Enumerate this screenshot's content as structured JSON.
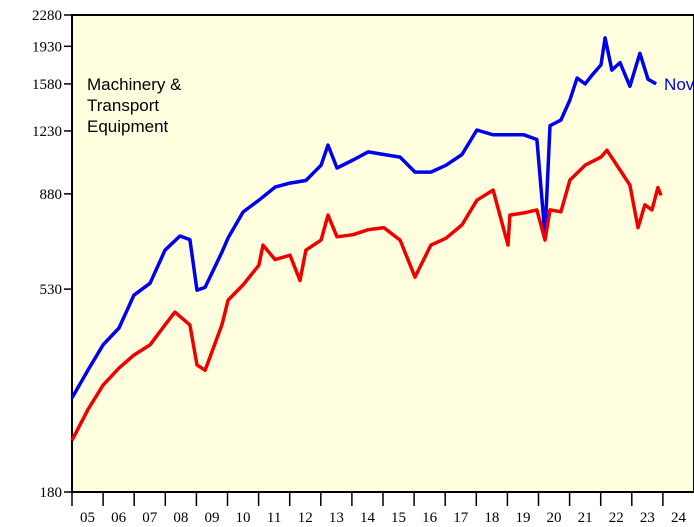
{
  "chart_data": {
    "type": "line",
    "annotations": [
      "Machinery &",
      "Transport",
      "Equipment"
    ],
    "end_label": "Nov",
    "log_scale": true,
    "ylim": [
      180,
      2280
    ],
    "yticks": [
      180,
      530,
      880,
      1230,
      1580,
      1930,
      2280
    ],
    "xlim": [
      2005,
      2025
    ],
    "xticks": [
      {
        "value": 2005,
        "label": "05"
      },
      {
        "value": 2006,
        "label": "06"
      },
      {
        "value": 2007,
        "label": "07"
      },
      {
        "value": 2008,
        "label": "08"
      },
      {
        "value": 2009,
        "label": "09"
      },
      {
        "value": 2010,
        "label": "10"
      },
      {
        "value": 2011,
        "label": "11"
      },
      {
        "value": 2012,
        "label": "12"
      },
      {
        "value": 2013,
        "label": "13"
      },
      {
        "value": 2014,
        "label": "14"
      },
      {
        "value": 2015,
        "label": "15"
      },
      {
        "value": 2016,
        "label": "16"
      },
      {
        "value": 2017,
        "label": "17"
      },
      {
        "value": 2018,
        "label": "18"
      },
      {
        "value": 2019,
        "label": "19"
      },
      {
        "value": 2020,
        "label": "20"
      },
      {
        "value": 2021,
        "label": "21"
      },
      {
        "value": 2022,
        "label": "22"
      },
      {
        "value": 2023,
        "label": "23"
      },
      {
        "value": 2024,
        "label": "24"
      }
    ],
    "series": [
      {
        "color": "#0000ee",
        "x": [
          2005.0,
          2005.51,
          2006.0,
          2006.51,
          2006.99,
          2007.51,
          2007.99,
          2008.47,
          2008.79,
          2009.02,
          2009.28,
          2009.82,
          2010.02,
          2010.5,
          2011.01,
          2011.53,
          2012.01,
          2012.52,
          2013.01,
          2013.23,
          2013.52,
          2014.04,
          2014.52,
          2015.03,
          2015.55,
          2016.03,
          2016.54,
          2017.03,
          2017.54,
          2018.02,
          2018.54,
          2019.02,
          2019.53,
          2019.95,
          2020.21,
          2020.37,
          2020.72,
          2021.01,
          2021.24,
          2021.5,
          2021.72,
          2022.01,
          2022.14,
          2022.36,
          2022.62,
          2022.94,
          2023.26,
          2023.52,
          2023.78
        ],
        "values": [
          297,
          344,
          394,
          431,
          513,
          547,
          652,
          703,
          690,
          527,
          535,
          645,
          696,
          799,
          851,
          912,
          932,
          945,
          1025,
          1141,
          1010,
          1054,
          1100,
          1085,
          1070,
          988,
          988,
          1025,
          1085,
          1236,
          1205,
          1205,
          1205,
          1175,
          706,
          1265,
          1303,
          1450,
          1630,
          1580,
          1655,
          1748,
          2018,
          1700,
          1770,
          1560,
          1860,
          1620,
          1580
        ]
      },
      {
        "color": "#ee0000",
        "x": [
          2005.0,
          2005.51,
          2006.0,
          2006.51,
          2006.99,
          2007.51,
          2007.99,
          2008.31,
          2008.79,
          2009.02,
          2009.28,
          2009.82,
          2010.02,
          2010.5,
          2011.01,
          2011.14,
          2011.53,
          2012.01,
          2012.33,
          2012.52,
          2013.01,
          2013.23,
          2013.52,
          2014.04,
          2014.52,
          2015.03,
          2015.55,
          2016.03,
          2016.54,
          2017.03,
          2017.54,
          2018.02,
          2018.54,
          2019.02,
          2019.08,
          2019.53,
          2019.95,
          2020.21,
          2020.37,
          2020.72,
          2021.01,
          2021.5,
          2022.01,
          2022.2,
          2022.62,
          2022.94,
          2023.2,
          2023.42,
          2023.65,
          2023.84,
          2023.94
        ],
        "values": [
          237,
          279,
          318,
          348,
          373,
          394,
          438,
          469,
          438,
          354,
          344,
          438,
          500,
          542,
          602,
          670,
          620,
          635,
          555,
          652,
          688,
          786,
          700,
          708,
          727,
          735,
          688,
          565,
          670,
          695,
          746,
          851,
          898,
          670,
          786,
          795,
          808,
          688,
          808,
          800,
          947,
          1025,
          1070,
          1110,
          999,
          922,
          735,
          830,
          808,
          910,
          873
        ]
      }
    ]
  }
}
